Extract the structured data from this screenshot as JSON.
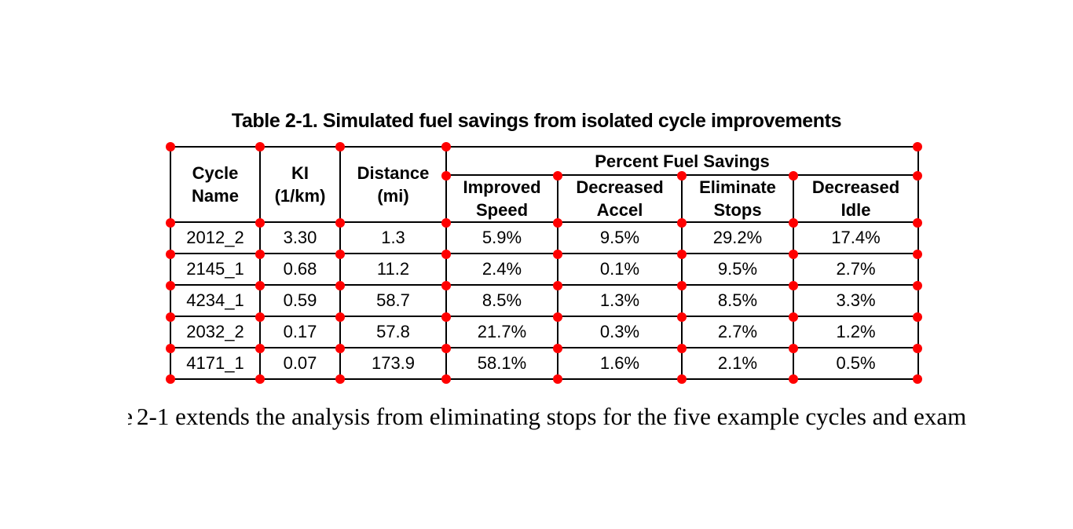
{
  "annotations": {
    "marker_color": "#ff0000",
    "marker_description": "red circular markers at every table grid-line intersection"
  },
  "table": {
    "title": "Table 2-1. Simulated fuel savings from isolated cycle improvements",
    "headers": {
      "cycle_name": "Cycle\nName",
      "ki": "KI\n(1/km)",
      "distance": "Distance\n(mi)",
      "group": "Percent Fuel Savings",
      "improved_speed": "Improved\nSpeed",
      "decreased_accel": "Decreased\nAccel",
      "eliminate_stops": "Eliminate\nStops",
      "decreased_idle": "Decreased\nIdle"
    },
    "rows": [
      [
        "2012_2",
        "3.30",
        "1.3",
        "5.9%",
        "9.5%",
        "29.2%",
        "17.4%"
      ],
      [
        "2145_1",
        "0.68",
        "11.2",
        "2.4%",
        "0.1%",
        "9.5%",
        "2.7%"
      ],
      [
        "4234_1",
        "0.59",
        "58.7",
        "8.5%",
        "1.3%",
        "8.5%",
        "3.3%"
      ],
      [
        "2032_2",
        "0.17",
        "57.8",
        "21.7%",
        "0.3%",
        "2.7%",
        "1.2%"
      ],
      [
        "4171_1",
        "0.07",
        "173.9",
        "58.1%",
        "1.6%",
        "2.1%",
        "0.5%"
      ]
    ]
  },
  "chart_data": {
    "type": "table",
    "title": "Table 2-1. Simulated fuel savings from isolated cycle improvements",
    "columns": [
      "Cycle Name",
      "KI (1/km)",
      "Distance (mi)",
      "Improved Speed",
      "Decreased Accel",
      "Eliminate Stops",
      "Decreased Idle"
    ],
    "column_group": {
      "label": "Percent Fuel Savings",
      "spans": [
        "Improved Speed",
        "Decreased Accel",
        "Eliminate Stops",
        "Decreased Idle"
      ]
    },
    "rows": [
      [
        "2012_2",
        "3.30",
        "1.3",
        "5.9%",
        "9.5%",
        "29.2%",
        "17.4%"
      ],
      [
        "2145_1",
        "0.68",
        "11.2",
        "2.4%",
        "0.1%",
        "9.5%",
        "2.7%"
      ],
      [
        "4234_1",
        "0.59",
        "58.7",
        "8.5%",
        "1.3%",
        "8.5%",
        "3.3%"
      ],
      [
        "2032_2",
        "0.17",
        "57.8",
        "21.7%",
        "0.3%",
        "2.7%",
        "1.2%"
      ],
      [
        "4171_1",
        "0.07",
        "173.9",
        "58.1%",
        "1.6%",
        "2.1%",
        "0.5%"
      ]
    ]
  },
  "caption": {
    "fragment": "e",
    "text": "2-1 extends the analysis from eliminating stops for the five example cycles and exam"
  }
}
